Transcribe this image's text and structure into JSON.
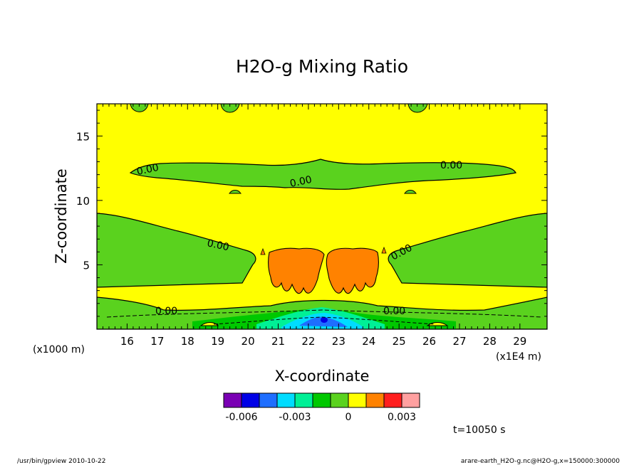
{
  "chart_data": {
    "type": "heatmap",
    "title": "H2O-g Mixing Ratio",
    "xlabel": "X-coordinate",
    "ylabel": "Z-coordinate",
    "x_ticks": [
      "16",
      "17",
      "18",
      "19",
      "20",
      "21",
      "22",
      "23",
      "24",
      "25",
      "26",
      "27",
      "28",
      "29"
    ],
    "y_ticks": [
      "5",
      "10",
      "15"
    ],
    "x_unit_left": "(x1000 m)",
    "x_unit_right": "(x1E4 m)",
    "xlim": [
      15.0,
      29.9
    ],
    "ylim": [
      0.0,
      17.5
    ],
    "contour_labels": [
      "0.00",
      "0.00",
      "0.00",
      "0.00",
      "0.00",
      "0.00",
      "0.00"
    ],
    "colorbar": {
      "colors": [
        "#7a00b4",
        "#0000e6",
        "#1e6eff",
        "#00dcff",
        "#00f096",
        "#00c800",
        "#5ad21e",
        "#ffff00",
        "#ff8200",
        "#ff1e1e",
        "#ffa0a0"
      ],
      "tick_labels": [
        "-0.006",
        "-0.003",
        "0",
        "0.003"
      ]
    },
    "time_label": "t=10050 s"
  },
  "footer": {
    "left": "/usr/bin/gpview  2010-10-22",
    "right": "arare-earth_H2O-g.nc@H2O-g,x=150000:300000"
  }
}
